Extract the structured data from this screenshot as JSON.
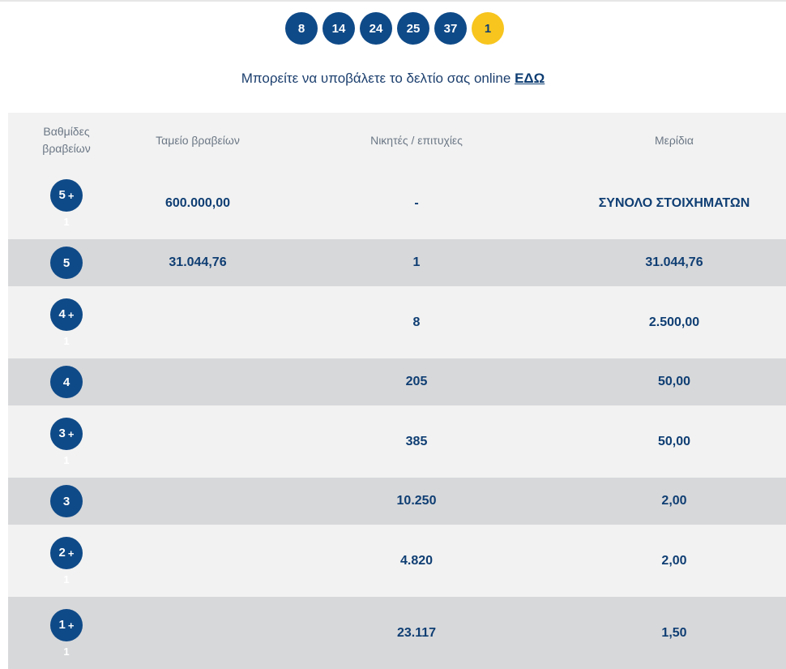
{
  "draw_numbers": [
    "8",
    "14",
    "24",
    "25",
    "37"
  ],
  "joker_number": "1",
  "submit": {
    "text": "Μπορείτε να υποβάλετε το δελτίο σας online",
    "link": "ΕΔΩ"
  },
  "table": {
    "headers": {
      "tier_line1": "Βαθμίδες",
      "tier_line2": "βραβείων",
      "fund": "Ταμείο βραβείων",
      "winners": "Νικητές / επιτυχίες",
      "dividend": "Μερίδια"
    },
    "rows": [
      {
        "tier": "5",
        "plus": "+",
        "sub": "1",
        "fund": "600.000,00",
        "winners": "-",
        "dividend": "ΣΥΝΟΛΟ ΣΤΟΙΧΗΜΑΤΩΝ"
      },
      {
        "tier": "5",
        "plus": "",
        "sub": "",
        "fund": "31.044,76",
        "winners": "1",
        "dividend": "31.044,76"
      },
      {
        "tier": "4",
        "plus": "+",
        "sub": "1",
        "fund": "",
        "winners": "8",
        "dividend": "2.500,00"
      },
      {
        "tier": "4",
        "plus": "",
        "sub": "",
        "fund": "",
        "winners": "205",
        "dividend": "50,00"
      },
      {
        "tier": "3",
        "plus": "+",
        "sub": "1",
        "fund": "",
        "winners": "385",
        "dividend": "50,00"
      },
      {
        "tier": "3",
        "plus": "",
        "sub": "",
        "fund": "",
        "winners": "10.250",
        "dividend": "2,00"
      },
      {
        "tier": "2",
        "plus": "+",
        "sub": "1",
        "fund": "",
        "winners": "4.820",
        "dividend": "2,00"
      },
      {
        "tier": "1",
        "plus": "+",
        "sub": "1",
        "fund": "",
        "winners": "23.117",
        "dividend": "1,50"
      }
    ]
  },
  "colors": {
    "navy": "#0f4a88",
    "joker": "#f7c51e",
    "row_light": "#f2f2f2",
    "row_dark": "#d7d8da"
  }
}
